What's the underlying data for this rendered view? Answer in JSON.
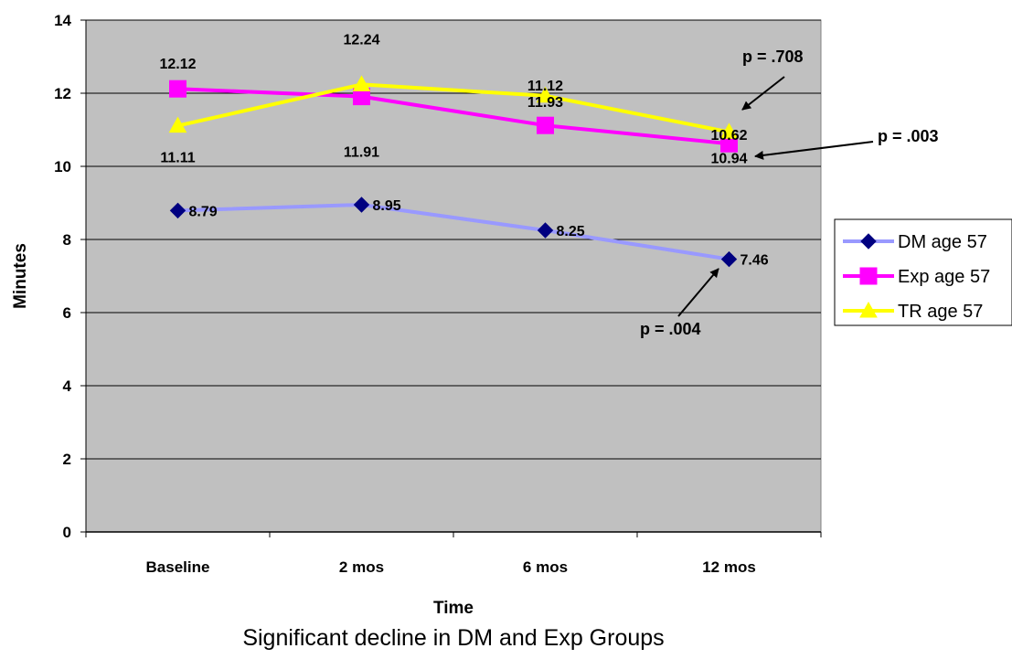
{
  "chart_data": {
    "type": "line",
    "categories": [
      "Baseline",
      "2 mos",
      "6 mos",
      "12 mos"
    ],
    "series": [
      {
        "name": "DM age 57",
        "values": [
          8.79,
          8.95,
          8.25,
          7.46
        ],
        "labels": [
          "8.79",
          "8.95",
          "8.25",
          "7.46"
        ],
        "line_color": "#9999ff",
        "marker_color": "#000080",
        "marker": "diamond"
      },
      {
        "name": "Exp age 57",
        "values": [
          12.12,
          11.91,
          11.12,
          10.62
        ],
        "labels": [
          "12.12",
          "11.91",
          "11.12",
          "10.62"
        ],
        "line_color": "#ff00ff",
        "marker_color": "#ff00ff",
        "marker": "square"
      },
      {
        "name": "TR age 57",
        "values": [
          11.11,
          12.24,
          11.93,
          10.94
        ],
        "labels": [
          "11.11",
          "12.24",
          "11.93",
          "10.94"
        ],
        "line_color": "#ffff00",
        "marker_color": "#ffff00",
        "marker": "triangle"
      }
    ],
    "xlabel": "Time",
    "ylabel": "Minutes",
    "ylim": [
      0,
      14
    ],
    "yticks": [
      "0",
      "2",
      "4",
      "6",
      "8",
      "10",
      "12",
      "14"
    ],
    "grid": true,
    "plot_background": "#c0c0c0",
    "legend_position": "right",
    "annotations": [
      {
        "text": "p = .708",
        "series": "TR age 57",
        "category": "12 mos"
      },
      {
        "text": "p = .003",
        "series": "Exp age 57",
        "category": "12 mos"
      },
      {
        "text": "p = .004",
        "series": "DM age 57",
        "category": "12 mos"
      }
    ]
  },
  "caption": "Significant decline in DM and Exp Groups"
}
